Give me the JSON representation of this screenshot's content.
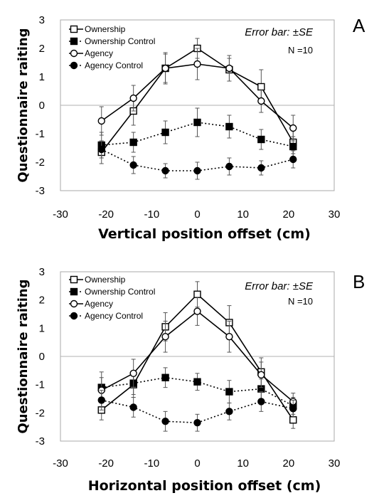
{
  "chart_data": [
    {
      "type": "line",
      "panel_label": "A",
      "xlabel": "Vertical position offset (cm)",
      "ylabel": "Questionnaire raiting",
      "xlim": [
        -30,
        30
      ],
      "ylim": [
        -3,
        3
      ],
      "xticks": [
        -30,
        -20,
        -10,
        0,
        10,
        20,
        30
      ],
      "yticks": [
        3,
        2,
        1,
        0,
        -1,
        -2,
        -3
      ],
      "annotation": "Error bar: ±SE",
      "n_label": "N =10",
      "legend_position": "top-left",
      "x": [
        -21,
        -14,
        -7,
        0,
        7,
        14,
        21
      ],
      "series": [
        {
          "name": "Ownership",
          "marker": "square-open",
          "line": "solid",
          "values": [
            -1.65,
            -0.2,
            1.3,
            2.0,
            1.25,
            0.65,
            -1.3
          ],
          "errors": [
            0.4,
            0.5,
            0.55,
            0.35,
            0.4,
            0.6,
            0.4
          ]
        },
        {
          "name": "Ownership Control",
          "marker": "square-filled",
          "line": "dotted",
          "values": [
            -1.4,
            -1.3,
            -0.95,
            -0.6,
            -0.75,
            -1.2,
            -1.45
          ],
          "errors": [
            0.45,
            0.35,
            0.4,
            0.5,
            0.4,
            0.35,
            0.35
          ]
        },
        {
          "name": "Agency",
          "marker": "circle-open",
          "line": "solid",
          "values": [
            -0.55,
            0.25,
            1.3,
            1.45,
            1.3,
            0.15,
            -0.8
          ],
          "errors": [
            0.5,
            0.45,
            0.5,
            0.55,
            0.45,
            0.4,
            0.45
          ]
        },
        {
          "name": "Agency Control",
          "marker": "circle-filled",
          "line": "dotted",
          "values": [
            -1.55,
            -2.1,
            -2.3,
            -2.3,
            -2.15,
            -2.2,
            -1.9
          ],
          "errors": [
            0.3,
            0.3,
            0.25,
            0.3,
            0.3,
            0.25,
            0.3
          ]
        }
      ]
    },
    {
      "type": "line",
      "panel_label": "B",
      "xlabel": "Horizontal position offset (cm)",
      "ylabel": "Questionnaire raiting",
      "xlim": [
        -30,
        30
      ],
      "ylim": [
        -3,
        3
      ],
      "xticks": [
        -30,
        -20,
        -10,
        0,
        10,
        20,
        30
      ],
      "yticks": [
        3,
        2,
        1,
        0,
        -1,
        -2,
        -3
      ],
      "annotation": "Error bar: ±SE",
      "n_label": "N =10",
      "legend_position": "top-left",
      "x": [
        -21,
        -14,
        -7,
        0,
        7,
        14,
        21
      ],
      "series": [
        {
          "name": "Ownership",
          "marker": "square-open",
          "line": "solid",
          "values": [
            -1.9,
            -1.0,
            1.05,
            2.2,
            1.2,
            -0.55,
            -2.25
          ],
          "errors": [
            0.35,
            0.45,
            0.5,
            0.45,
            0.6,
            0.5,
            0.3
          ]
        },
        {
          "name": "Ownership Control",
          "marker": "square-filled",
          "line": "dotted",
          "values": [
            -1.1,
            -0.95,
            -0.75,
            -0.9,
            -1.25,
            -1.15,
            -1.75
          ],
          "errors": [
            0.55,
            0.4,
            0.35,
            0.3,
            0.4,
            0.35,
            0.3
          ]
        },
        {
          "name": "Agency",
          "marker": "circle-open",
          "line": "solid",
          "values": [
            -1.2,
            -0.6,
            0.7,
            1.6,
            0.7,
            -0.65,
            -1.6
          ],
          "errors": [
            0.45,
            0.5,
            0.55,
            0.5,
            0.55,
            0.45,
            0.3
          ]
        },
        {
          "name": "Agency Control",
          "marker": "circle-filled",
          "line": "dotted",
          "values": [
            -1.55,
            -1.8,
            -2.3,
            -2.35,
            -1.95,
            -1.6,
            -1.85
          ],
          "errors": [
            0.35,
            0.35,
            0.35,
            0.3,
            0.3,
            0.35,
            0.3
          ]
        }
      ]
    }
  ]
}
